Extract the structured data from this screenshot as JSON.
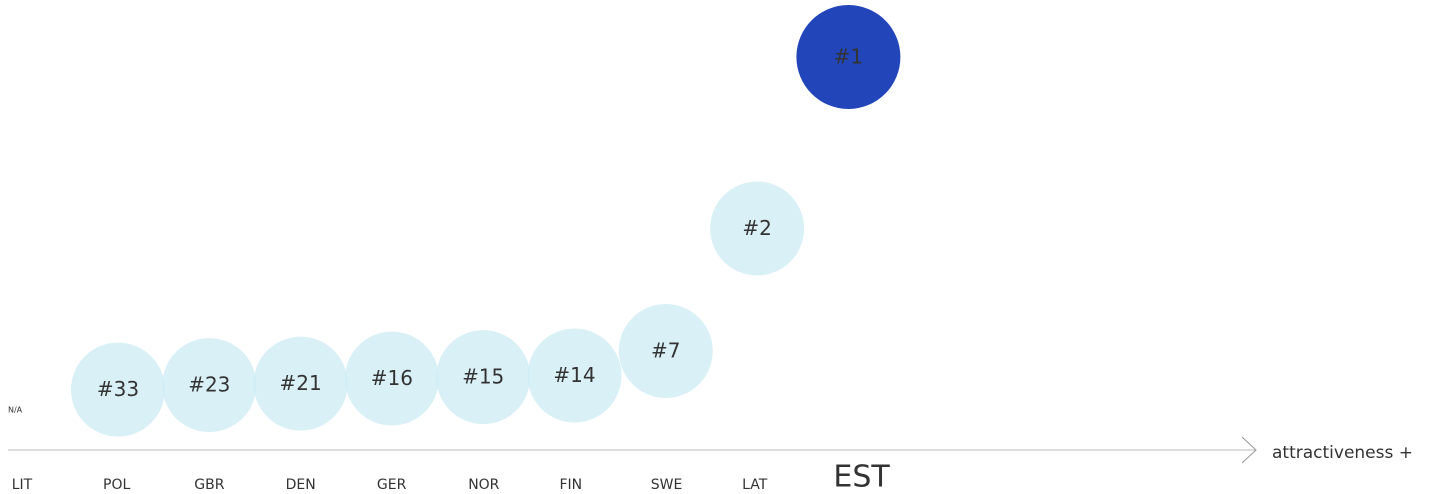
{
  "chart_data": {
    "type": "bubble-rank",
    "categories": [
      "LIT",
      "POL",
      "GBR",
      "DEN",
      "GER",
      "NOR",
      "FIN",
      "SWE",
      "LAT",
      "EST"
    ],
    "values": [
      null,
      33,
      23,
      21,
      16,
      15,
      14,
      7,
      2,
      1
    ],
    "value_labels": [
      "N/A",
      "#33",
      "#23",
      "#21",
      "#16",
      "#15",
      "#14",
      "#7",
      "#2",
      "#1"
    ],
    "x_label": "attractiveness +",
    "color": "#cfecf5",
    "highlight_color": "#2246b9"
  }
}
